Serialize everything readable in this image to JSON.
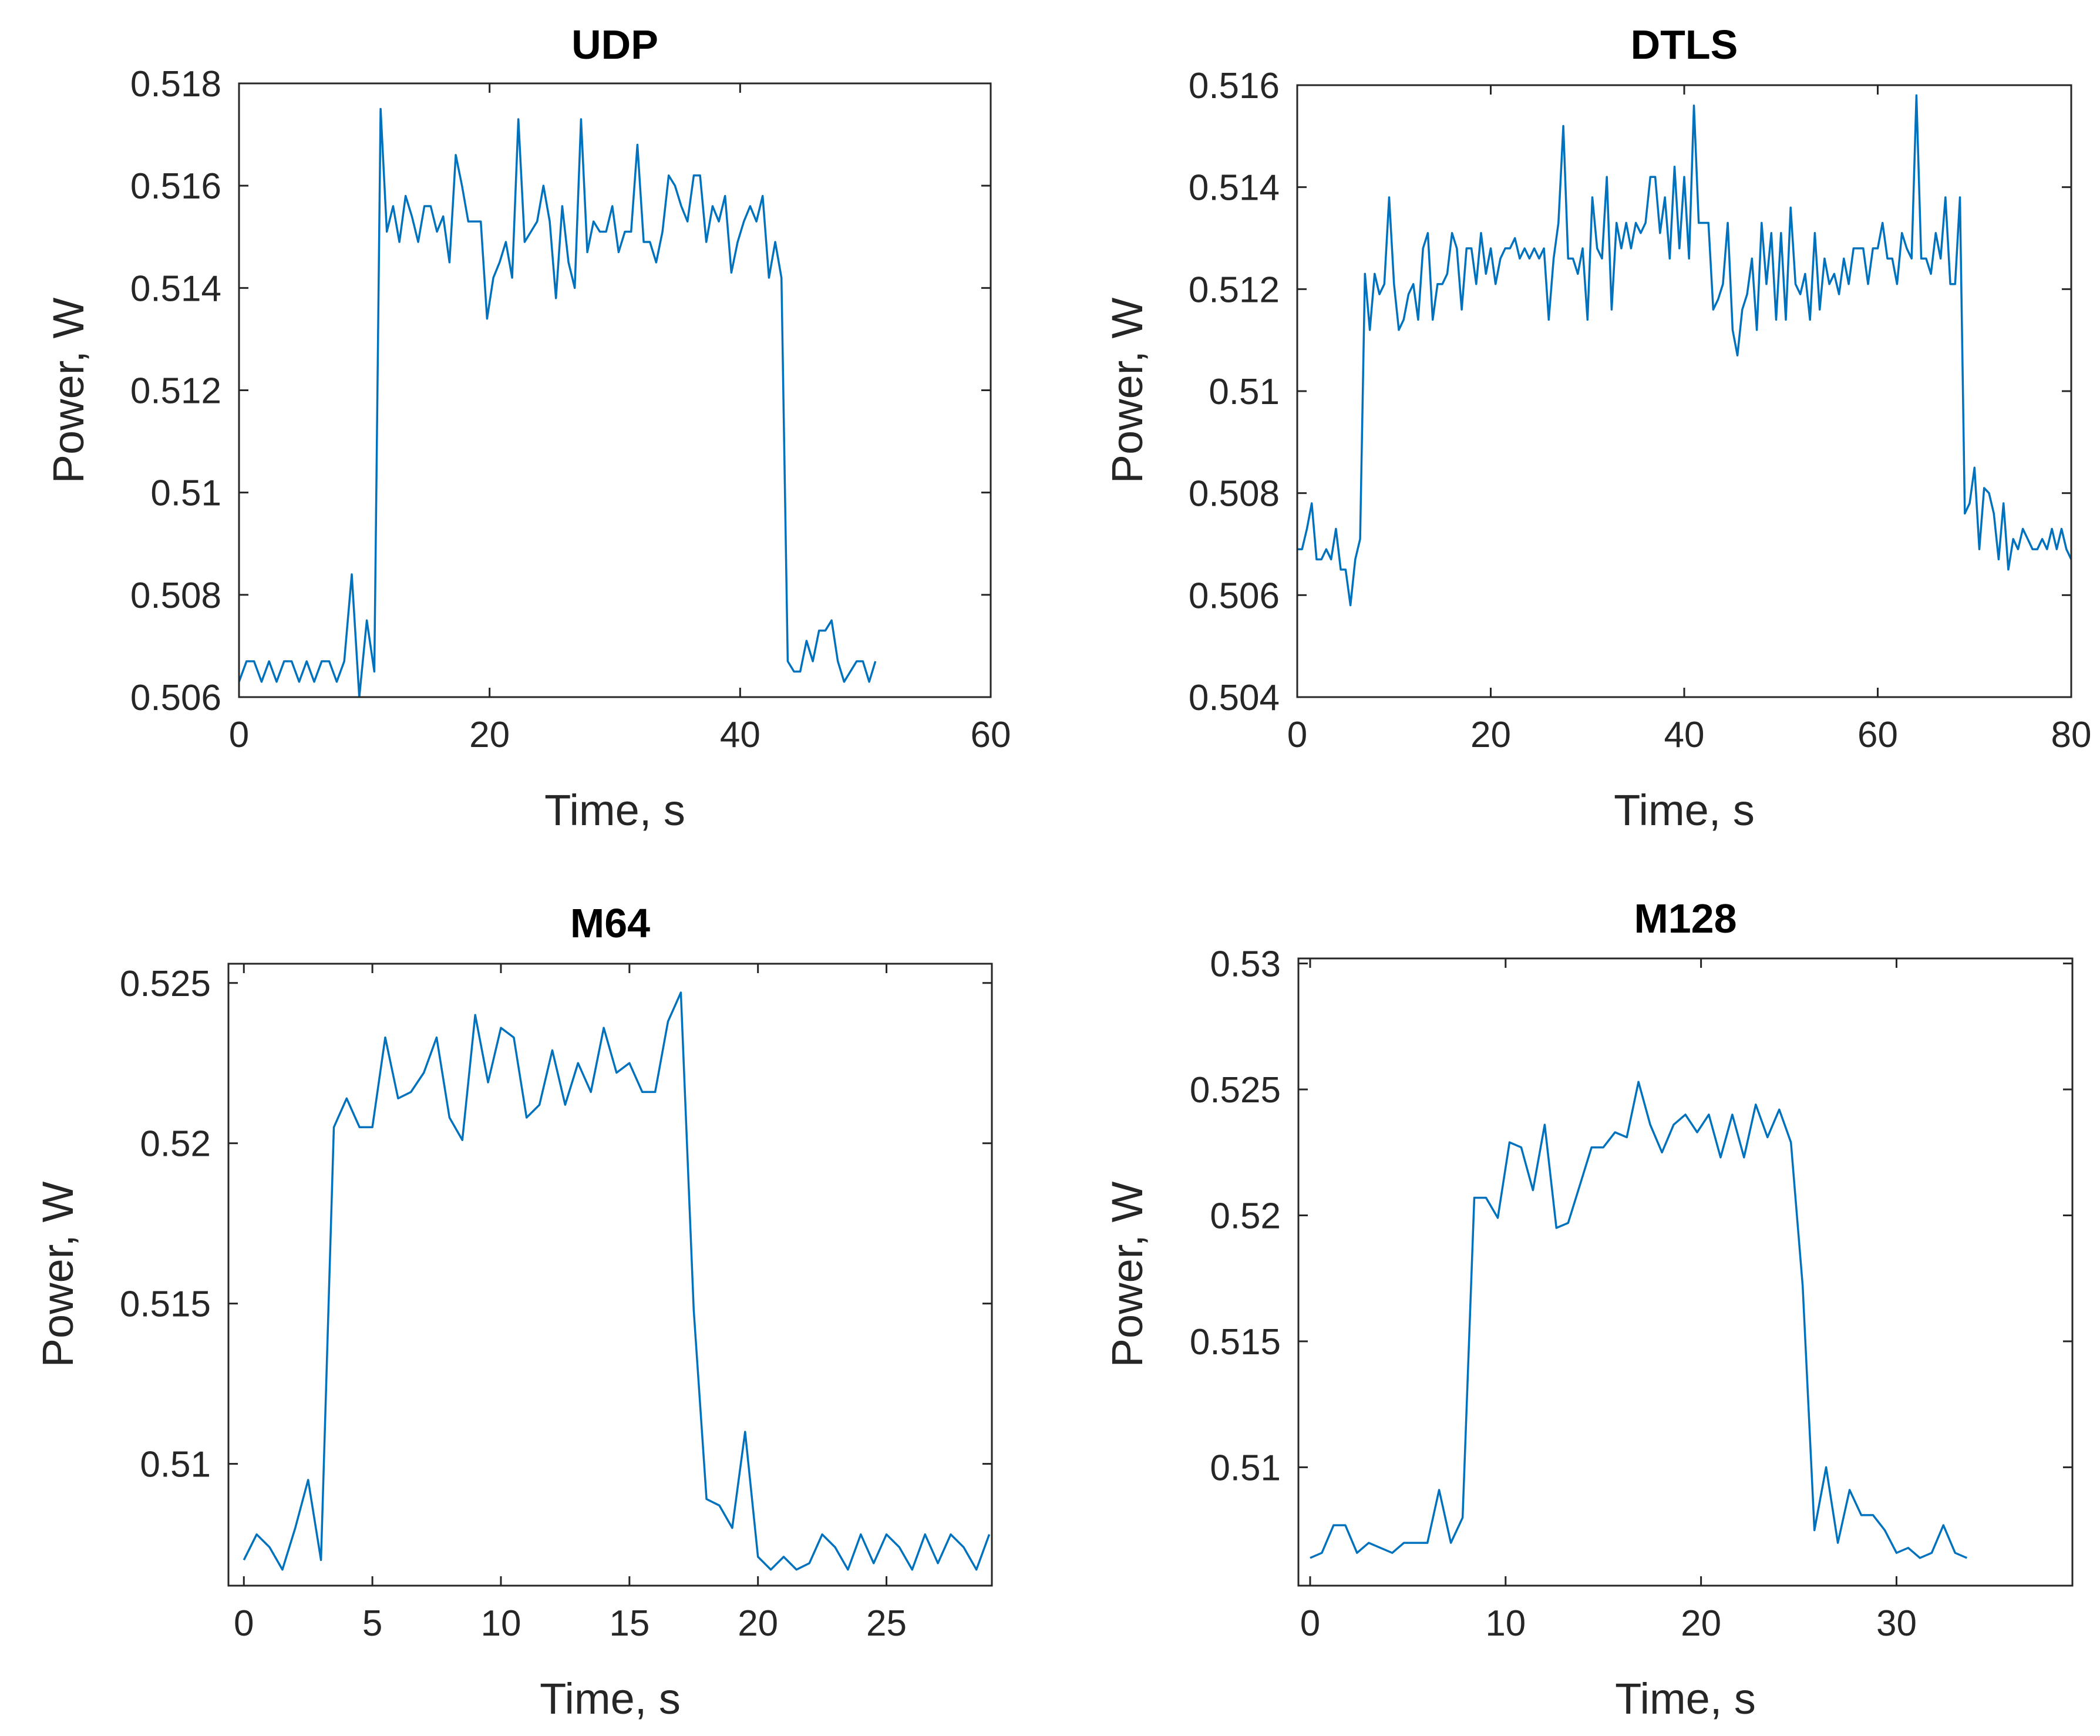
{
  "figure": {
    "line_color": "#0072BD",
    "axis_color": "#262626"
  },
  "chart_data": [
    {
      "type": "line",
      "title": "UDP",
      "xlabel": "Time, s",
      "ylabel": "Power, W",
      "xlim": [
        0,
        60
      ],
      "ylim": [
        0.506,
        0.518
      ],
      "xticks": [
        0,
        20,
        40,
        60
      ],
      "xtick_labels": [
        "0",
        "20",
        "40",
        "60"
      ],
      "yticks": [
        0.506,
        0.508,
        0.51,
        0.512,
        0.514,
        0.516,
        0.518
      ],
      "ytick_labels": [
        "0.506",
        "0.508",
        "0.51",
        "0.512",
        "0.514",
        "0.516",
        "0.518"
      ],
      "series": [
        {
          "name": "UDP",
          "x": [
            0,
            0.6,
            1.2,
            1.8,
            2.4,
            3.0,
            3.6,
            4.2,
            4.8,
            5.4,
            6.0,
            6.6,
            7.2,
            7.8,
            8.4,
            9.0,
            9.6,
            10.2,
            10.8,
            11.3,
            11.8,
            12.3,
            12.8,
            13.3,
            13.8,
            14.3,
            14.8,
            15.3,
            15.8,
            16.3,
            16.8,
            17.3,
            17.8,
            18.3,
            18.8,
            19.3,
            19.8,
            20.3,
            20.8,
            21.3,
            21.8,
            22.3,
            22.8,
            23.3,
            23.8,
            24.3,
            24.8,
            25.3,
            25.8,
            26.3,
            26.8,
            27.3,
            27.8,
            28.3,
            28.8,
            29.3,
            29.8,
            30.3,
            30.8,
            31.3,
            31.8,
            32.3,
            32.8,
            33.3,
            33.8,
            34.3,
            34.8,
            35.3,
            35.8,
            36.3,
            36.8,
            37.3,
            37.8,
            38.3,
            38.8,
            39.3,
            39.8,
            40.3,
            40.8,
            41.3,
            41.8,
            42.3,
            42.8,
            43.3,
            43.8,
            44.3,
            44.8,
            45.3,
            45.8,
            46.3,
            46.8,
            47.3,
            47.8,
            48.3,
            48.8,
            49.3,
            49.8,
            50.3,
            50.8
          ],
          "y": [
            0.5063,
            0.5067,
            0.5067,
            0.5063,
            0.5067,
            0.5063,
            0.5067,
            0.5067,
            0.5063,
            0.5067,
            0.5063,
            0.5067,
            0.5067,
            0.5063,
            0.5067,
            0.5084,
            0.506,
            0.5075,
            0.5065,
            0.5175,
            0.5151,
            0.5156,
            0.5149,
            0.5158,
            0.5154,
            0.5149,
            0.5156,
            0.5156,
            0.5151,
            0.5154,
            0.5145,
            0.5166,
            0.516,
            0.5153,
            0.5153,
            0.5153,
            0.5134,
            0.5142,
            0.5145,
            0.5149,
            0.5142,
            0.5173,
            0.5149,
            0.5151,
            0.5153,
            0.516,
            0.5153,
            0.5138,
            0.5156,
            0.5145,
            0.514,
            0.5173,
            0.5147,
            0.5153,
            0.5151,
            0.5151,
            0.5156,
            0.5147,
            0.5151,
            0.5151,
            0.5168,
            0.5149,
            0.5149,
            0.5145,
            0.5151,
            0.5162,
            0.516,
            0.5156,
            0.5153,
            0.5162,
            0.5162,
            0.5149,
            0.5156,
            0.5153,
            0.5158,
            0.5143,
            0.5149,
            0.5153,
            0.5156,
            0.5153,
            0.5158,
            0.5142,
            0.5149,
            0.5142,
            0.5067,
            0.5065,
            0.5065,
            0.5071,
            0.5067,
            0.5073,
            0.5073,
            0.5075,
            0.5067,
            0.5063,
            0.5065,
            0.5067,
            0.5067,
            0.5063,
            0.5067
          ]
        }
      ]
    },
    {
      "type": "line",
      "title": "DTLS",
      "xlabel": "Time, s",
      "ylabel": "Power, W",
      "xlim": [
        0,
        80
      ],
      "ylim": [
        0.504,
        0.516
      ],
      "xticks": [
        0,
        20,
        40,
        60,
        80
      ],
      "xtick_labels": [
        "0",
        "20",
        "40",
        "60",
        "80"
      ],
      "yticks": [
        0.504,
        0.506,
        0.508,
        0.51,
        0.512,
        0.514,
        0.516
      ],
      "ytick_labels": [
        "0.504",
        "0.506",
        "0.508",
        "0.51",
        "0.512",
        "0.514",
        "0.516"
      ],
      "series": [
        {
          "name": "DTLS",
          "x": [
            0,
            0.5,
            1,
            1.5,
            2,
            2.5,
            3,
            3.5,
            4,
            4.5,
            5,
            5.5,
            6,
            6.5,
            7,
            7.5,
            8,
            8.5,
            9,
            9.5,
            10,
            10.5,
            11,
            11.5,
            12,
            12.5,
            13,
            13.5,
            14,
            14.5,
            15,
            15.5,
            16,
            16.5,
            17,
            17.5,
            18,
            18.5,
            19,
            19.5,
            20,
            20.5,
            21,
            21.5,
            22,
            22.5,
            23,
            23.5,
            24,
            24.5,
            25,
            25.5,
            26,
            26.5,
            27,
            27.5,
            28,
            28.5,
            29,
            29.5,
            30,
            30.5,
            31,
            31.5,
            32,
            32.5,
            33,
            33.5,
            34,
            34.5,
            35,
            35.5,
            36,
            36.5,
            37,
            37.5,
            38,
            38.5,
            39,
            39.5,
            40,
            40.5,
            41,
            41.5,
            42,
            42.5,
            43,
            43.5,
            44,
            44.5,
            45,
            45.5,
            46,
            46.5,
            47,
            47.5,
            48,
            48.5,
            49,
            49.5,
            50,
            50.5,
            51,
            51.5,
            52,
            52.5,
            53,
            53.5,
            54,
            54.5,
            55,
            55.5,
            56,
            56.5,
            57,
            57.5,
            58,
            58.5,
            59,
            59.5,
            60,
            60.5,
            61,
            61.5,
            62,
            62.5,
            63,
            63.5,
            64,
            64.5,
            65,
            65.5,
            66,
            66.5,
            67,
            67.5,
            68,
            68.5,
            69,
            69.5,
            70,
            70.5,
            71,
            71.5,
            72,
            72.5,
            73,
            73.5,
            74,
            74.5,
            75,
            75.5,
            76,
            76.5,
            77,
            77.5,
            78,
            78.5,
            79,
            79.5,
            80
          ],
          "y": [
            0.5069,
            0.5069,
            0.5073,
            0.5078,
            0.5067,
            0.5067,
            0.5069,
            0.5067,
            0.5073,
            0.5065,
            0.5065,
            0.5058,
            0.5067,
            0.5071,
            0.5123,
            0.5112,
            0.5123,
            0.5119,
            0.5121,
            0.5138,
            0.5121,
            0.5112,
            0.5114,
            0.5119,
            0.5121,
            0.5114,
            0.5128,
            0.5131,
            0.5114,
            0.5121,
            0.5121,
            0.5123,
            0.5131,
            0.5128,
            0.5116,
            0.5128,
            0.5128,
            0.5121,
            0.5131,
            0.5123,
            0.5128,
            0.5121,
            0.5126,
            0.5128,
            0.5128,
            0.513,
            0.5126,
            0.5128,
            0.5126,
            0.5128,
            0.5126,
            0.5128,
            0.5114,
            0.5126,
            0.5133,
            0.5152,
            0.5126,
            0.5126,
            0.5123,
            0.5128,
            0.5114,
            0.5138,
            0.5128,
            0.5126,
            0.5142,
            0.5116,
            0.5133,
            0.5128,
            0.5133,
            0.5128,
            0.5133,
            0.5131,
            0.5133,
            0.5142,
            0.5142,
            0.5131,
            0.5138,
            0.5126,
            0.5144,
            0.5128,
            0.5142,
            0.5126,
            0.5156,
            0.5133,
            0.5133,
            0.5133,
            0.5116,
            0.5118,
            0.5121,
            0.5133,
            0.5112,
            0.5107,
            0.5116,
            0.5119,
            0.5126,
            0.5112,
            0.5133,
            0.5121,
            0.5131,
            0.5114,
            0.5131,
            0.5114,
            0.5136,
            0.5121,
            0.5119,
            0.5123,
            0.5114,
            0.5131,
            0.5116,
            0.5126,
            0.5121,
            0.5123,
            0.5119,
            0.5126,
            0.5121,
            0.5128,
            0.5128,
            0.5128,
            0.5121,
            0.5128,
            0.5128,
            0.5133,
            0.5126,
            0.5126,
            0.5121,
            0.5131,
            0.5128,
            0.5126,
            0.5158,
            0.5126,
            0.5126,
            0.5123,
            0.5131,
            0.5126,
            0.5138,
            0.5121,
            0.5121,
            0.5138,
            0.5076,
            0.5078,
            0.5085,
            0.5069,
            0.5081,
            0.508,
            0.5076,
            0.5067,
            0.5078,
            0.5065,
            0.5071,
            0.5069,
            0.5073,
            0.5071,
            0.5069,
            0.5069,
            0.5071,
            0.5069,
            0.5073,
            0.5069,
            0.5073,
            0.5069,
            0.5067
          ]
        }
      ]
    },
    {
      "type": "line",
      "title": "M64",
      "xlabel": "Time, s",
      "ylabel": "Power, W",
      "xlim": [
        -0.6,
        29.1
      ],
      "ylim": [
        0.5062,
        0.5256
      ],
      "xticks": [
        0,
        5,
        10,
        15,
        20,
        25
      ],
      "xtick_labels": [
        "0",
        "5",
        "10",
        "15",
        "20",
        "25"
      ],
      "yticks": [
        0.51,
        0.515,
        0.52,
        0.525
      ],
      "ytick_labels": [
        "0.51",
        "0.515",
        "0.52",
        "0.525"
      ],
      "series": [
        {
          "name": "M64",
          "x": [
            0,
            0.5,
            1,
            1.5,
            2,
            2.5,
            3,
            3.5,
            4,
            4.5,
            5,
            5.5,
            6,
            6.5,
            7,
            7.5,
            8,
            8.5,
            9,
            9.5,
            10,
            10.5,
            11,
            11.5,
            12,
            12.5,
            13,
            13.5,
            14,
            14.5,
            15,
            15.5,
            16,
            16.5,
            17,
            17.5,
            18,
            18.5,
            19,
            19.5,
            20,
            20.5,
            21,
            21.5,
            22,
            22.5,
            23,
            23.5,
            24,
            24.5,
            25,
            25.5,
            26,
            26.5,
            27,
            27.5,
            28,
            28.5,
            29
          ],
          "y": [
            0.507,
            0.5078,
            0.5074,
            0.5067,
            0.508,
            0.5095,
            0.507,
            0.5205,
            0.5214,
            0.5205,
            0.5205,
            0.5233,
            0.5214,
            0.5216,
            0.5222,
            0.5233,
            0.5208,
            0.5201,
            0.524,
            0.5219,
            0.5236,
            0.5233,
            0.5208,
            0.5212,
            0.5229,
            0.5212,
            0.5225,
            0.5216,
            0.5236,
            0.5222,
            0.5225,
            0.5216,
            0.5216,
            0.5238,
            0.5247,
            0.5148,
            0.5089,
            0.5087,
            0.508,
            0.511,
            0.5071,
            0.5067,
            0.5071,
            0.5067,
            0.5069,
            0.5078,
            0.5074,
            0.5067,
            0.5078,
            0.5069,
            0.5078,
            0.5074,
            0.5067,
            0.5078,
            0.5069,
            0.5078,
            0.5074,
            0.5067,
            0.5078
          ]
        }
      ]
    },
    {
      "type": "line",
      "title": "M128",
      "xlabel": "Time, s",
      "ylabel": "Power, W",
      "xlim": [
        -0.6,
        39.0
      ],
      "ylim": [
        0.5053,
        0.5302
      ],
      "xticks": [
        0,
        10,
        20,
        30
      ],
      "xtick_labels": [
        "0",
        "10",
        "20",
        "30"
      ],
      "yticks": [
        0.51,
        0.515,
        0.52,
        0.525,
        0.53
      ],
      "ytick_labels": [
        "0.51",
        "0.515",
        "0.52",
        "0.525",
        "0.53"
      ],
      "series": [
        {
          "name": "M128",
          "x": [
            0,
            0.6,
            1.2,
            1.8,
            2.4,
            3.0,
            3.6,
            4.2,
            4.8,
            5.4,
            6.0,
            6.6,
            7.2,
            7.8,
            8.4,
            9.0,
            9.6,
            10.2,
            10.8,
            11.4,
            12.0,
            12.6,
            13.2,
            13.8,
            14.4,
            15.0,
            15.6,
            16.2,
            16.8,
            17.4,
            18.0,
            18.6,
            19.2,
            19.8,
            20.4,
            21.0,
            21.6,
            22.2,
            22.8,
            23.4,
            24.0,
            24.6,
            25.2,
            25.8,
            26.4,
            27.0,
            27.6,
            28.2,
            28.8,
            29.4,
            30.0,
            30.6,
            31.2,
            31.8,
            32.4,
            33.0,
            33.6
          ],
          "y": [
            0.5064,
            0.5066,
            0.5077,
            0.5077,
            0.5066,
            0.507,
            0.5068,
            0.5066,
            0.507,
            0.507,
            0.507,
            0.5091,
            0.507,
            0.508,
            0.5207,
            0.5207,
            0.5199,
            0.5229,
            0.5227,
            0.521,
            0.5236,
            0.5195,
            0.5197,
            0.5212,
            0.5227,
            0.5227,
            0.5233,
            0.5231,
            0.5253,
            0.5236,
            0.5225,
            0.5236,
            0.524,
            0.5233,
            0.524,
            0.5223,
            0.524,
            0.5223,
            0.5244,
            0.5231,
            0.5242,
            0.5229,
            0.5172,
            0.5075,
            0.51,
            0.507,
            0.5091,
            0.5081,
            0.5081,
            0.5075,
            0.5066,
            0.5068,
            0.5064,
            0.5066,
            0.5077,
            0.5066,
            0.5064
          ]
        }
      ]
    }
  ]
}
